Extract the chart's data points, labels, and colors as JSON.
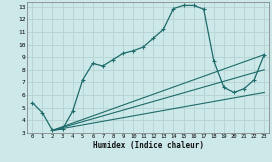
{
  "xlabel": "Humidex (Indice chaleur)",
  "background_color": "#cde8e8",
  "grid_color": "#b8d4d4",
  "line_color": "#1e6b6b",
  "xlim": [
    -0.5,
    23.5
  ],
  "ylim": [
    3,
    13.4
  ],
  "xticks": [
    0,
    1,
    2,
    3,
    4,
    5,
    6,
    7,
    8,
    9,
    10,
    11,
    12,
    13,
    14,
    15,
    16,
    17,
    18,
    19,
    20,
    21,
    22,
    23
  ],
  "yticks": [
    3,
    4,
    5,
    6,
    7,
    8,
    9,
    10,
    11,
    12,
    13
  ],
  "curve1_x": [
    0,
    1,
    2,
    3,
    4,
    5,
    6,
    7,
    8,
    9,
    10,
    11,
    12,
    13,
    14,
    15,
    16,
    17,
    18,
    19,
    20,
    21,
    22,
    23
  ],
  "curve1_y": [
    5.4,
    4.6,
    3.2,
    3.3,
    4.7,
    7.2,
    8.5,
    8.3,
    8.8,
    9.3,
    9.5,
    9.8,
    10.5,
    11.2,
    12.85,
    13.1,
    13.1,
    12.8,
    8.7,
    6.6,
    6.2,
    6.5,
    7.2,
    9.2
  ],
  "line1_x": [
    2,
    23
  ],
  "line1_y": [
    3.2,
    9.2
  ],
  "line2_x": [
    2,
    23
  ],
  "line2_y": [
    3.2,
    8.0
  ],
  "line3_x": [
    2,
    23
  ],
  "line3_y": [
    3.2,
    6.2
  ]
}
